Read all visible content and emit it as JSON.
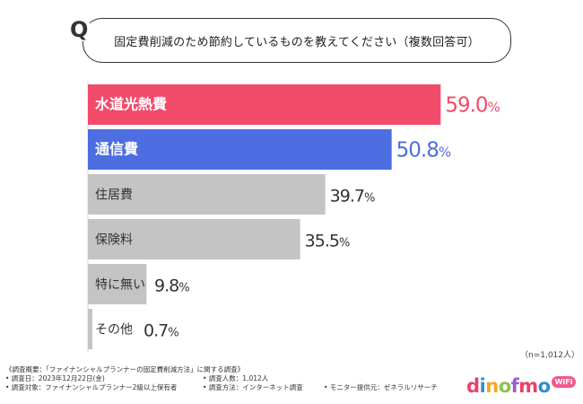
{
  "question": {
    "mark": "Q",
    "text": "固定費削減のため節約しているものを教えてください（複数回答可）"
  },
  "sample_note": "（n=1,012人）",
  "footnote": {
    "title": "《調査概要：「ファイナンシャルプランナーの固定費削減方法」に関する調査》",
    "date": "• 調査日：2023年12月22日(金)",
    "count": "• 調査人数：1,012人",
    "target": "• 調査対象：ファイナンシャルプランナー2級以上保有者",
    "method": "• 調査方法：インターネット調査",
    "provider": "• モニター提供元：ゼネラルリサーチ"
  },
  "logo": {
    "text": "dinofmo",
    "badge": "WiFi",
    "colors": [
      "#e8416b",
      "#2d8fd6",
      "#f5a623",
      "#8bc34a",
      "#9c5bd1",
      "#e8416b",
      "#2d8fd6"
    ]
  },
  "chart_data": {
    "type": "bar",
    "orientation": "horizontal",
    "categories": [
      "水道光熱費",
      "通信費",
      "住居費",
      "保険料",
      "特に無い",
      "その他"
    ],
    "values": [
      59.0,
      50.8,
      39.7,
      35.5,
      9.8,
      0.7
    ],
    "value_labels": [
      "59.0%",
      "50.8%",
      "39.7%",
      "35.5%",
      "9.8%",
      "0.7%"
    ],
    "unit": "%",
    "xlim": [
      0,
      60
    ],
    "bar_colors": [
      "#f24b6a",
      "#4d6ee0",
      "#c4c4c4",
      "#c4c4c4",
      "#c4c4c4",
      "#c4c4c4"
    ],
    "label_colors": [
      "#ffffff",
      "#ffffff",
      "#333333",
      "#333333",
      "#333333",
      "#333333"
    ],
    "value_colors": [
      "#f24b6a",
      "#4d6ee0",
      "#333333",
      "#333333",
      "#333333",
      "#333333"
    ],
    "grid": false,
    "legend": "none"
  }
}
